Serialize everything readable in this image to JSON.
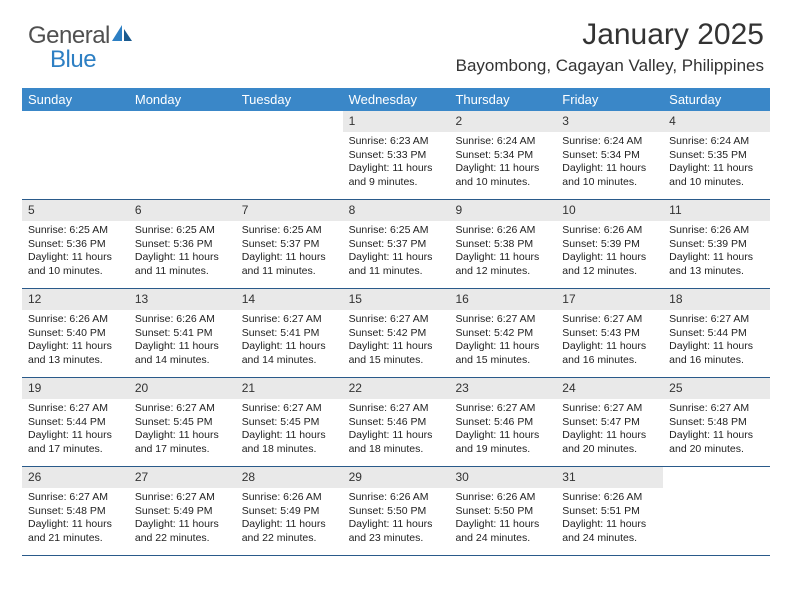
{
  "logo": {
    "general": "General",
    "blue": "Blue"
  },
  "title": "January 2025",
  "location": "Bayombong, Cagayan Valley, Philippines",
  "colors": {
    "header_bg": "#3a87c8",
    "header_text": "#ffffff",
    "daynum_bg": "#e9e9e9",
    "row_border": "#2a5a8a",
    "logo_gray": "#505050",
    "logo_blue": "#2d7fc3"
  },
  "weekdays": [
    "Sunday",
    "Monday",
    "Tuesday",
    "Wednesday",
    "Thursday",
    "Friday",
    "Saturday"
  ],
  "weeks": [
    [
      {
        "empty": true
      },
      {
        "empty": true
      },
      {
        "empty": true
      },
      {
        "day": "1",
        "sunrise": "Sunrise: 6:23 AM",
        "sunset": "Sunset: 5:33 PM",
        "daylight": "Daylight: 11 hours and 9 minutes."
      },
      {
        "day": "2",
        "sunrise": "Sunrise: 6:24 AM",
        "sunset": "Sunset: 5:34 PM",
        "daylight": "Daylight: 11 hours and 10 minutes."
      },
      {
        "day": "3",
        "sunrise": "Sunrise: 6:24 AM",
        "sunset": "Sunset: 5:34 PM",
        "daylight": "Daylight: 11 hours and 10 minutes."
      },
      {
        "day": "4",
        "sunrise": "Sunrise: 6:24 AM",
        "sunset": "Sunset: 5:35 PM",
        "daylight": "Daylight: 11 hours and 10 minutes."
      }
    ],
    [
      {
        "day": "5",
        "sunrise": "Sunrise: 6:25 AM",
        "sunset": "Sunset: 5:36 PM",
        "daylight": "Daylight: 11 hours and 10 minutes."
      },
      {
        "day": "6",
        "sunrise": "Sunrise: 6:25 AM",
        "sunset": "Sunset: 5:36 PM",
        "daylight": "Daylight: 11 hours and 11 minutes."
      },
      {
        "day": "7",
        "sunrise": "Sunrise: 6:25 AM",
        "sunset": "Sunset: 5:37 PM",
        "daylight": "Daylight: 11 hours and 11 minutes."
      },
      {
        "day": "8",
        "sunrise": "Sunrise: 6:25 AM",
        "sunset": "Sunset: 5:37 PM",
        "daylight": "Daylight: 11 hours and 11 minutes."
      },
      {
        "day": "9",
        "sunrise": "Sunrise: 6:26 AM",
        "sunset": "Sunset: 5:38 PM",
        "daylight": "Daylight: 11 hours and 12 minutes."
      },
      {
        "day": "10",
        "sunrise": "Sunrise: 6:26 AM",
        "sunset": "Sunset: 5:39 PM",
        "daylight": "Daylight: 11 hours and 12 minutes."
      },
      {
        "day": "11",
        "sunrise": "Sunrise: 6:26 AM",
        "sunset": "Sunset: 5:39 PM",
        "daylight": "Daylight: 11 hours and 13 minutes."
      }
    ],
    [
      {
        "day": "12",
        "sunrise": "Sunrise: 6:26 AM",
        "sunset": "Sunset: 5:40 PM",
        "daylight": "Daylight: 11 hours and 13 minutes."
      },
      {
        "day": "13",
        "sunrise": "Sunrise: 6:26 AM",
        "sunset": "Sunset: 5:41 PM",
        "daylight": "Daylight: 11 hours and 14 minutes."
      },
      {
        "day": "14",
        "sunrise": "Sunrise: 6:27 AM",
        "sunset": "Sunset: 5:41 PM",
        "daylight": "Daylight: 11 hours and 14 minutes."
      },
      {
        "day": "15",
        "sunrise": "Sunrise: 6:27 AM",
        "sunset": "Sunset: 5:42 PM",
        "daylight": "Daylight: 11 hours and 15 minutes."
      },
      {
        "day": "16",
        "sunrise": "Sunrise: 6:27 AM",
        "sunset": "Sunset: 5:42 PM",
        "daylight": "Daylight: 11 hours and 15 minutes."
      },
      {
        "day": "17",
        "sunrise": "Sunrise: 6:27 AM",
        "sunset": "Sunset: 5:43 PM",
        "daylight": "Daylight: 11 hours and 16 minutes."
      },
      {
        "day": "18",
        "sunrise": "Sunrise: 6:27 AM",
        "sunset": "Sunset: 5:44 PM",
        "daylight": "Daylight: 11 hours and 16 minutes."
      }
    ],
    [
      {
        "day": "19",
        "sunrise": "Sunrise: 6:27 AM",
        "sunset": "Sunset: 5:44 PM",
        "daylight": "Daylight: 11 hours and 17 minutes."
      },
      {
        "day": "20",
        "sunrise": "Sunrise: 6:27 AM",
        "sunset": "Sunset: 5:45 PM",
        "daylight": "Daylight: 11 hours and 17 minutes."
      },
      {
        "day": "21",
        "sunrise": "Sunrise: 6:27 AM",
        "sunset": "Sunset: 5:45 PM",
        "daylight": "Daylight: 11 hours and 18 minutes."
      },
      {
        "day": "22",
        "sunrise": "Sunrise: 6:27 AM",
        "sunset": "Sunset: 5:46 PM",
        "daylight": "Daylight: 11 hours and 18 minutes."
      },
      {
        "day": "23",
        "sunrise": "Sunrise: 6:27 AM",
        "sunset": "Sunset: 5:46 PM",
        "daylight": "Daylight: 11 hours and 19 minutes."
      },
      {
        "day": "24",
        "sunrise": "Sunrise: 6:27 AM",
        "sunset": "Sunset: 5:47 PM",
        "daylight": "Daylight: 11 hours and 20 minutes."
      },
      {
        "day": "25",
        "sunrise": "Sunrise: 6:27 AM",
        "sunset": "Sunset: 5:48 PM",
        "daylight": "Daylight: 11 hours and 20 minutes."
      }
    ],
    [
      {
        "day": "26",
        "sunrise": "Sunrise: 6:27 AM",
        "sunset": "Sunset: 5:48 PM",
        "daylight": "Daylight: 11 hours and 21 minutes."
      },
      {
        "day": "27",
        "sunrise": "Sunrise: 6:27 AM",
        "sunset": "Sunset: 5:49 PM",
        "daylight": "Daylight: 11 hours and 22 minutes."
      },
      {
        "day": "28",
        "sunrise": "Sunrise: 6:26 AM",
        "sunset": "Sunset: 5:49 PM",
        "daylight": "Daylight: 11 hours and 22 minutes."
      },
      {
        "day": "29",
        "sunrise": "Sunrise: 6:26 AM",
        "sunset": "Sunset: 5:50 PM",
        "daylight": "Daylight: 11 hours and 23 minutes."
      },
      {
        "day": "30",
        "sunrise": "Sunrise: 6:26 AM",
        "sunset": "Sunset: 5:50 PM",
        "daylight": "Daylight: 11 hours and 24 minutes."
      },
      {
        "day": "31",
        "sunrise": "Sunrise: 6:26 AM",
        "sunset": "Sunset: 5:51 PM",
        "daylight": "Daylight: 11 hours and 24 minutes."
      },
      {
        "empty": true
      }
    ]
  ]
}
